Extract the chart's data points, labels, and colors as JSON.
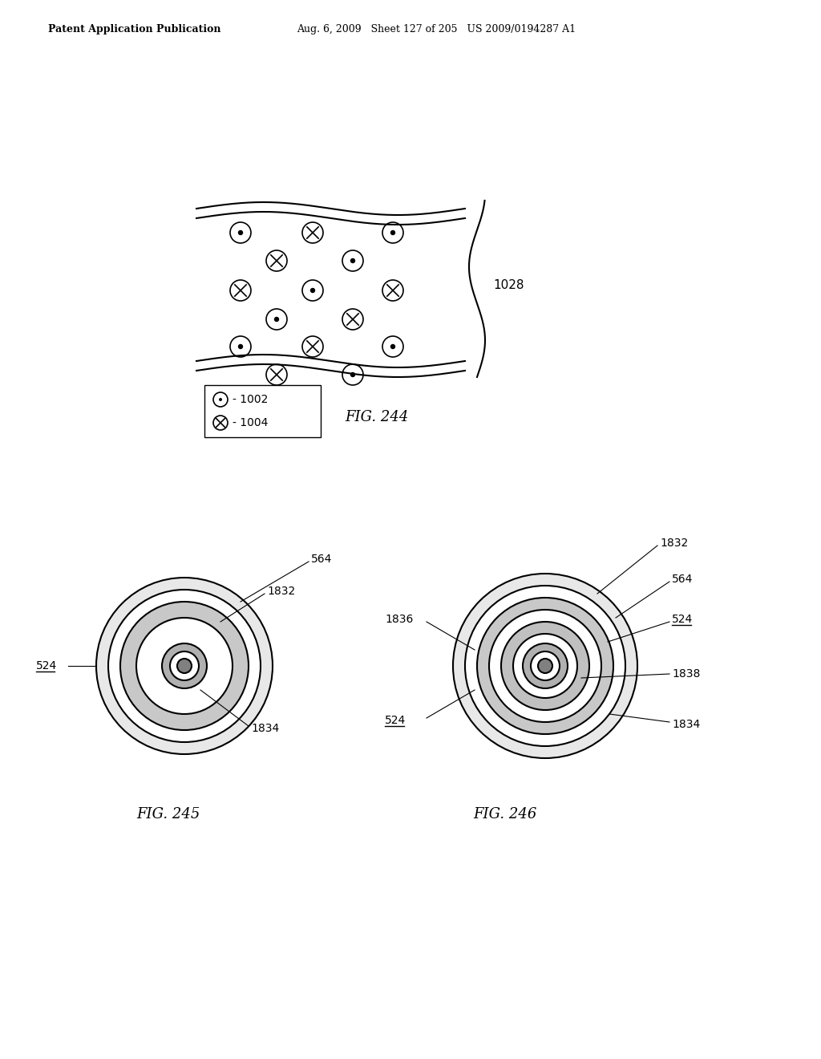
{
  "header_left": "Patent Application Publication",
  "header_mid": "Aug. 6, 2009   Sheet 127 of 205   US 2009/0194287 A1",
  "fig244_label": "FIG. 244",
  "fig245_label": "FIG. 245",
  "fig246_label": "FIG. 246",
  "label_1028": "1028",
  "label_1002": "- 1002",
  "label_1004": "- 1004",
  "bg_color": "#ffffff",
  "line_color": "#000000"
}
